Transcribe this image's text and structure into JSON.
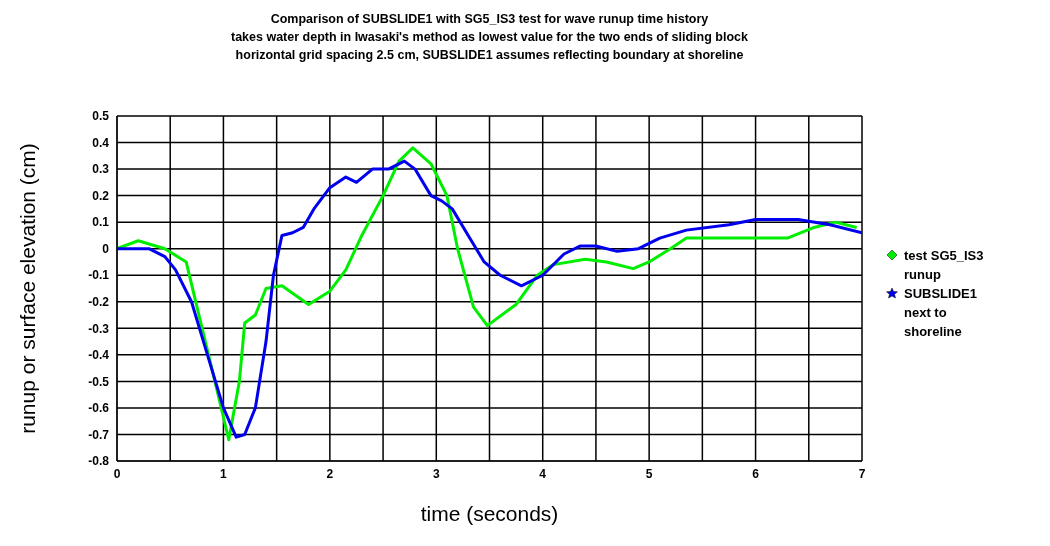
{
  "chart_data": {
    "type": "line",
    "title": "Comparison of SUBSLIDE1 with SG5_IS3 test for wave runup time history",
    "subtitle": "takes water depth in Iwasaki's method as lowest value for the two ends of sliding block\nhorizontal grid spacing 2.5 cm, SUBSLIDE1 assumes reflecting boundary at shoreline",
    "xlabel": "time (seconds)",
    "ylabel": "runup or surface elevation (cm)",
    "xlim": [
      0,
      7
    ],
    "xticks": [
      0,
      {
        "value": 0.5,
        "label": null
      },
      1,
      {
        "value": 1.5,
        "label": null
      },
      2,
      {
        "value": 2.5,
        "label": null
      },
      3,
      {
        "value": 3.5,
        "label": null
      },
      4,
      {
        "value": 4.5,
        "label": null
      },
      5,
      {
        "value": 5.5,
        "label": null
      },
      6,
      {
        "value": 6.5,
        "label": null
      },
      7
    ],
    "ylim": [
      -0.8,
      0.5
    ],
    "yticks": [
      -0.8,
      -0.7,
      -0.6,
      -0.5,
      -0.4,
      -0.3,
      -0.2,
      -0.1,
      0,
      0.1,
      0.2,
      0.3,
      0.4,
      0.5
    ],
    "grid": true,
    "legend": "right",
    "marker": "none",
    "line_style": "solid",
    "series": [
      {
        "name": "test SG5_IS3 runup",
        "color": "#00ee00",
        "x": [
          0,
          0.2,
          0.45,
          0.65,
          0.8,
          0.95,
          1.05,
          1.15,
          1.2,
          1.3,
          1.4,
          1.55,
          1.8,
          2.0,
          2.15,
          2.3,
          2.5,
          2.65,
          2.78,
          2.95,
          3.1,
          3.2,
          3.35,
          3.48,
          3.75,
          3.95,
          4.1,
          4.4,
          4.6,
          4.85,
          5.0,
          5.2,
          5.35,
          6.3,
          6.55,
          6.75,
          6.95
        ],
        "values": [
          0,
          0.03,
          0.0,
          -0.05,
          -0.3,
          -0.55,
          -0.72,
          -0.5,
          -0.28,
          -0.25,
          -0.15,
          -0.14,
          -0.21,
          -0.16,
          -0.08,
          0.05,
          0.2,
          0.33,
          0.38,
          0.32,
          0.2,
          0.0,
          -0.22,
          -0.29,
          -0.21,
          -0.1,
          -0.06,
          -0.04,
          -0.05,
          -0.075,
          -0.05,
          0.0,
          0.04,
          0.04,
          0.08,
          0.1,
          0.08
        ]
      },
      {
        "name": "SUBSLIDE1 next to shoreline",
        "color": "#0000ee",
        "x": [
          0,
          0.3,
          0.45,
          0.55,
          0.7,
          0.85,
          1.0,
          1.12,
          1.2,
          1.3,
          1.4,
          1.47,
          1.55,
          1.65,
          1.75,
          1.85,
          2.0,
          2.15,
          2.25,
          2.4,
          2.55,
          2.7,
          2.8,
          2.95,
          3.05,
          3.15,
          3.3,
          3.45,
          3.6,
          3.8,
          4.0,
          4.2,
          4.35,
          4.5,
          4.7,
          4.9,
          5.1,
          5.35,
          5.75,
          6.0,
          6.4,
          6.7,
          7.0
        ],
        "values": [
          0,
          0.0,
          -0.03,
          -0.08,
          -0.2,
          -0.4,
          -0.6,
          -0.71,
          -0.7,
          -0.6,
          -0.35,
          -0.1,
          0.05,
          0.06,
          0.08,
          0.15,
          0.23,
          0.27,
          0.25,
          0.3,
          0.3,
          0.33,
          0.3,
          0.2,
          0.18,
          0.15,
          0.05,
          -0.05,
          -0.1,
          -0.14,
          -0.1,
          -0.02,
          0.01,
          0.01,
          -0.01,
          0.0,
          0.04,
          0.07,
          0.09,
          0.11,
          0.11,
          0.09,
          0.06
        ]
      }
    ]
  }
}
